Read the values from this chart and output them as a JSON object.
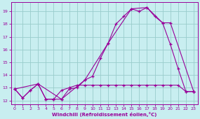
{
  "xlabel": "Windchill (Refroidissement éolien,°C)",
  "bg_color": "#c8eef0",
  "line_color": "#990099",
  "xlim": [
    -0.5,
    23.5
  ],
  "ylim": [
    11.7,
    19.7
  ],
  "yticks": [
    12,
    13,
    14,
    15,
    16,
    17,
    18,
    19
  ],
  "xticks": [
    0,
    1,
    2,
    3,
    4,
    5,
    6,
    7,
    8,
    9,
    10,
    11,
    12,
    13,
    14,
    15,
    16,
    17,
    18,
    19,
    20,
    21,
    22,
    23
  ],
  "grid_color": "#99cccc",
  "marker": "+",
  "series1_x": [
    0,
    1,
    2,
    3,
    4,
    5,
    6,
    7,
    8,
    9,
    10,
    11,
    12,
    13,
    14,
    15,
    16,
    17,
    18,
    19,
    20,
    21,
    22,
    23
  ],
  "series1_y": [
    12.9,
    12.2,
    12.8,
    13.3,
    12.1,
    12.1,
    12.1,
    12.9,
    13.0,
    13.6,
    13.9,
    15.3,
    16.5,
    18.0,
    18.6,
    19.2,
    19.0,
    19.3,
    18.6,
    18.1,
    16.4,
    14.5,
    12.7,
    12.7
  ],
  "series2_x": [
    0,
    1,
    2,
    3,
    4,
    5,
    6,
    7,
    8,
    9,
    10,
    11,
    12,
    13,
    14,
    15,
    16,
    17,
    18,
    19,
    20,
    21,
    22,
    23
  ],
  "series2_y": [
    12.9,
    12.2,
    12.8,
    13.3,
    12.1,
    12.1,
    12.8,
    13.0,
    13.2,
    13.2,
    13.2,
    13.2,
    13.2,
    13.2,
    13.2,
    13.2,
    13.2,
    13.2,
    13.2,
    13.2,
    13.2,
    13.2,
    12.7,
    12.7
  ],
  "series3_x": [
    0,
    3,
    6,
    9,
    12,
    15,
    17,
    19,
    20,
    23
  ],
  "series3_y": [
    12.9,
    13.3,
    12.1,
    13.6,
    16.5,
    19.2,
    19.3,
    18.1,
    18.1,
    12.7
  ]
}
